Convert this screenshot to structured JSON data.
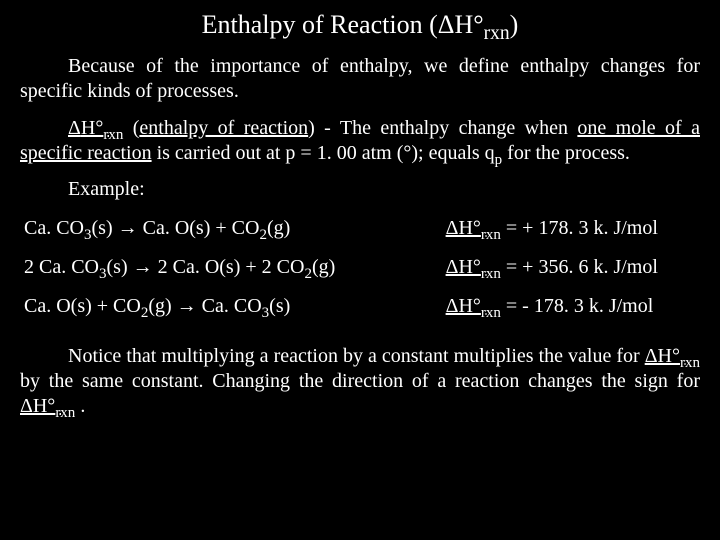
{
  "colors": {
    "background": "#000000",
    "text": "#ffffff"
  },
  "title": {
    "pre": "Enthalpy of Reaction (",
    "delta": "Δ",
    "h": "H",
    "deg": "°",
    "sub": "rxn",
    "post": ")"
  },
  "intro": {
    "text": "Because of the importance of enthalpy, we define enthalpy changes for specific kinds of processes."
  },
  "def": {
    "delta": "Δ",
    "sym_h": "H°",
    "sym_sub": "rxn",
    "term": "enthalpy of reaction",
    "mid1": ") - The enthalpy change when ",
    "one_mole": "one mole of a specific reaction",
    "mid2": " is carried out at p = 1. 00 atm (°); equals q",
    "qsub": "p",
    "mid3": " for the process."
  },
  "example_label": "Example:",
  "reactions": [
    {
      "lhs": "Ca. CO",
      "lhs_sub1": "3",
      "lhs_tail": "(s)  →  Ca. O(s) + CO",
      "lhs_sub2": "2",
      "lhs_end": "(g)",
      "val_pre": "ΔH°",
      "val_sub": "rxn",
      "val_post": " = + 178. 3 k. J/mol"
    },
    {
      "lhs": "2 Ca. CO",
      "lhs_sub1": "3",
      "lhs_tail": "(s)  →  2 Ca. O(s) + 2 CO",
      "lhs_sub2": "2",
      "lhs_end": "(g)",
      "val_pre": "ΔH°",
      "val_sub": "rxn",
      "val_post": " = + 356. 6 k. J/mol"
    },
    {
      "lhs": "Ca. O(s) + CO",
      "lhs_sub1": "2",
      "lhs_tail": "(g)  →  Ca. CO",
      "lhs_sub2": "3",
      "lhs_end": "(s)",
      "val_pre": "ΔH°",
      "val_sub": "rxn",
      "val_post": " = - 178. 3 k. J/mol"
    }
  ],
  "footer": {
    "t1": "Notice that multiplying a reaction by a constant multiplies the value for ",
    "sym_pre": "ΔH°",
    "sym_sub": "rxn",
    "t2": " by the same constant.  Changing the direction of a reaction changes the sign for ",
    "t3": " ."
  },
  "typography": {
    "title_fontsize": 26,
    "body_fontsize": 20,
    "font_family": "Times New Roman"
  }
}
